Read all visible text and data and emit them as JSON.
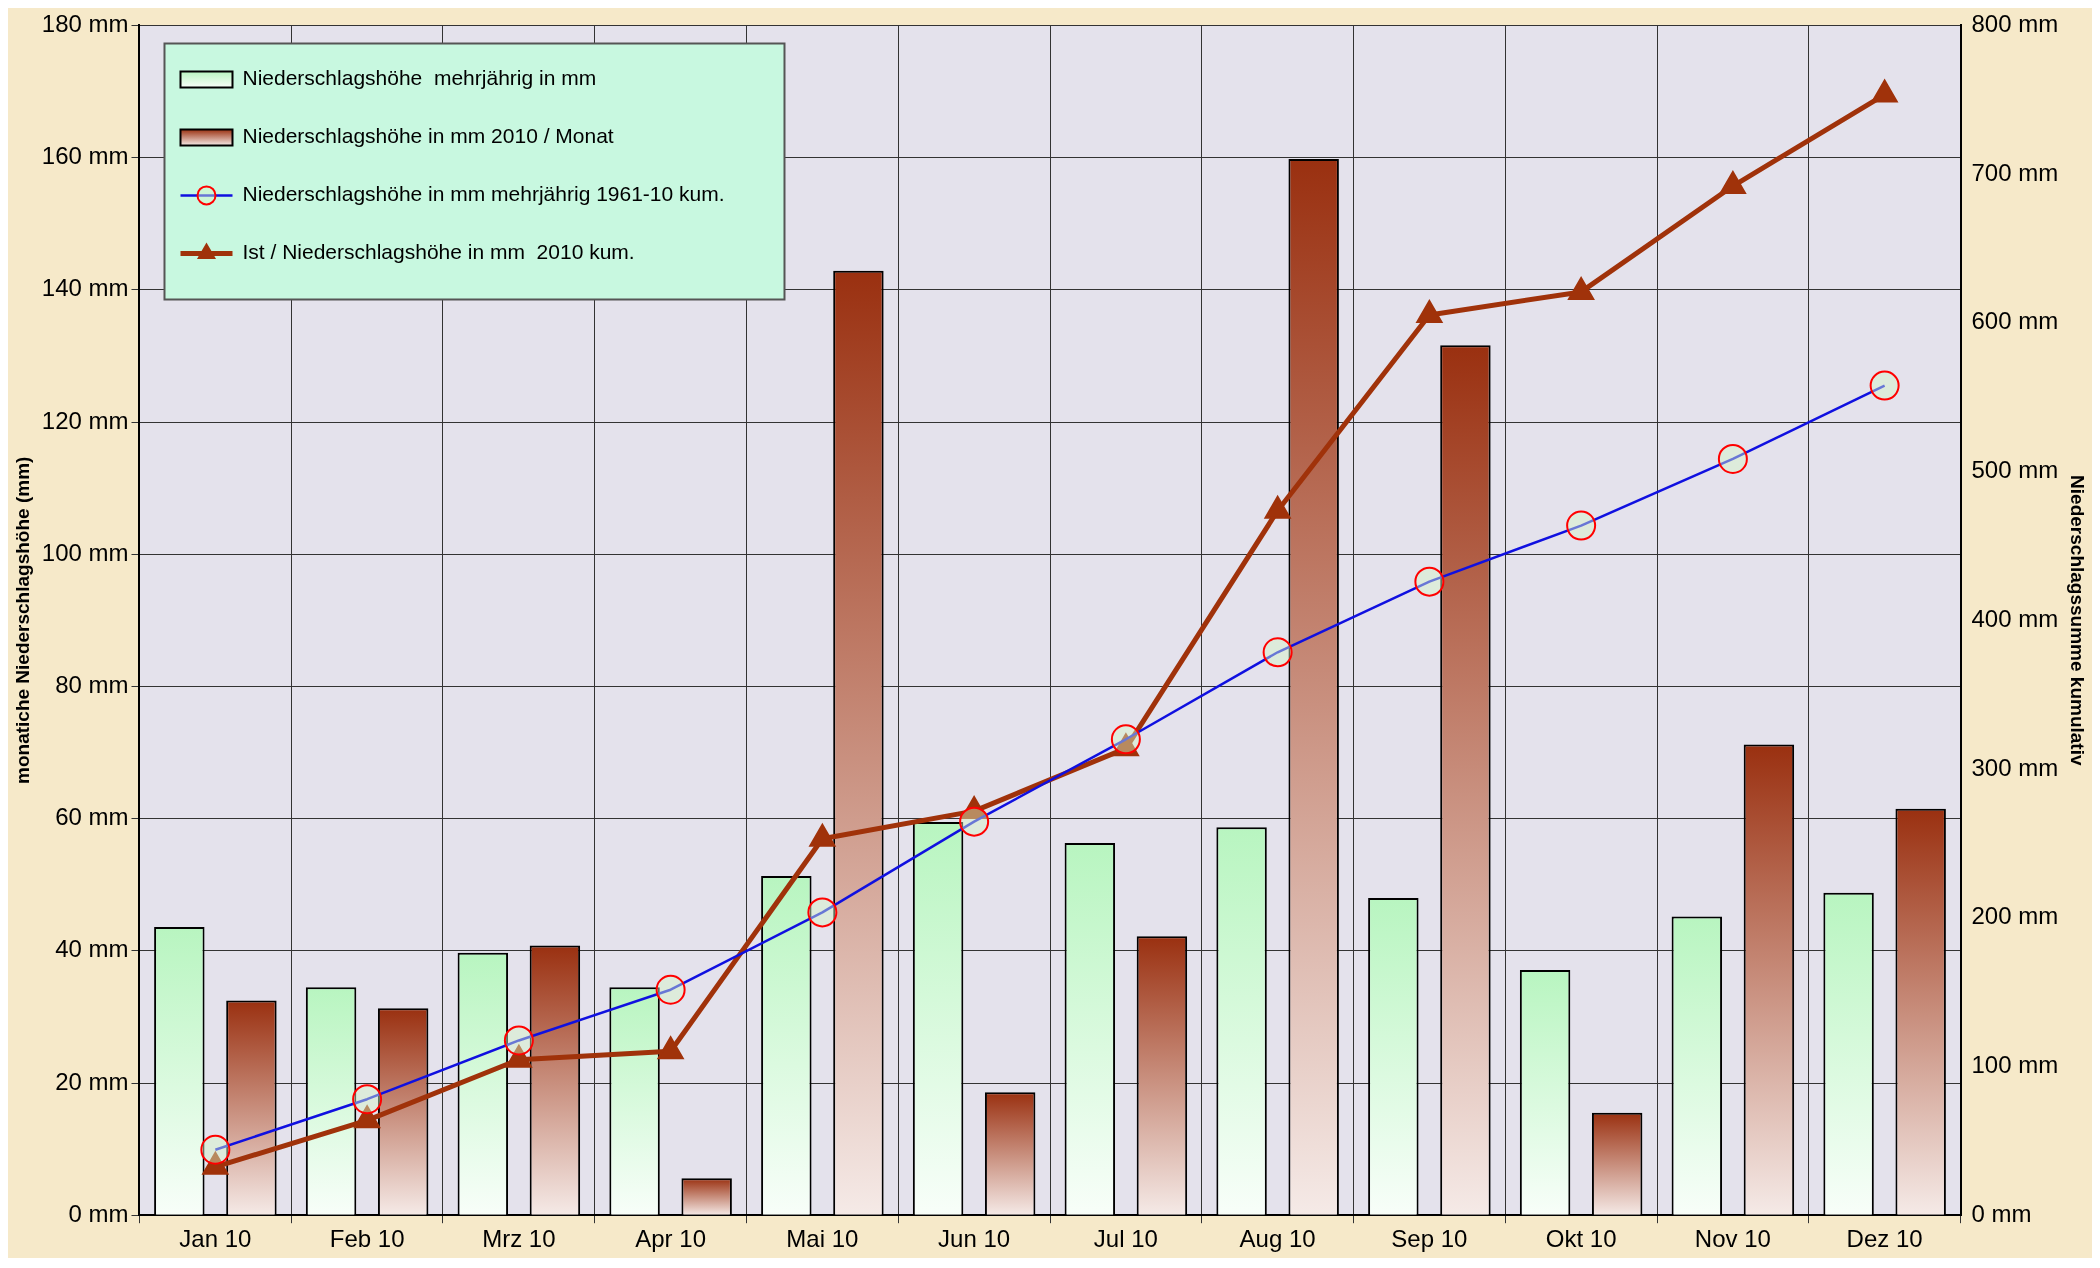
{
  "chart_data": {
    "type": "bar",
    "categories": [
      "Jan 10",
      "Feb 10",
      "Mrz 10",
      "Apr 10",
      "Mai 10",
      "Jun 10",
      "Jul 10",
      "Aug 10",
      "Sep 10",
      "Okt 10",
      "Nov 10",
      "Dez 10"
    ],
    "ylabel": "monatiche Niederschlagshöhe (mm)",
    "y2label": "Niederschlagssumme kumulativ",
    "ylim": [
      0,
      180
    ],
    "yticks": [
      {
        "value": 0,
        "label": "0 mm"
      },
      {
        "value": 20,
        "label": "20 mm"
      },
      {
        "value": 40,
        "label": "40 mm"
      },
      {
        "value": 60,
        "label": "60 mm"
      },
      {
        "value": 80,
        "label": "80 mm"
      },
      {
        "value": 100,
        "label": "100 mm"
      },
      {
        "value": 120,
        "label": "120 mm"
      },
      {
        "value": 140,
        "label": "140 mm"
      },
      {
        "value": 160,
        "label": "160 mm"
      },
      {
        "value": 180,
        "label": "180 mm"
      }
    ],
    "y2lim": [
      0,
      800
    ],
    "y2ticks": [
      {
        "value": 0,
        "label": "0 mm"
      },
      {
        "value": 100,
        "label": "100 mm"
      },
      {
        "value": 200,
        "label": "200 mm"
      },
      {
        "value": 300,
        "label": "300 mm"
      },
      {
        "value": 400,
        "label": "400 mm"
      },
      {
        "value": 500,
        "label": "500 mm"
      },
      {
        "value": 600,
        "label": "600 mm"
      },
      {
        "value": 700,
        "label": "700 mm"
      },
      {
        "value": 800,
        "label": "800 mm"
      }
    ],
    "grid": true,
    "legend": "top left",
    "series": [
      {
        "name": "Niederschlagshöhe  mehrjährig in mm",
        "color": "#b8f5c0",
        "values": [
          43.6,
          34.5,
          39.7,
          34.5,
          51.3,
          59.5,
          56.3,
          58.7,
          48,
          37.1,
          45.2,
          48.8
        ]
      },
      {
        "name": "Niederschlagshöhe in mm 2010 / Monat",
        "color": "#9a3010",
        "values": [
          32.5,
          31.3,
          40.8,
          5.6,
          142.9,
          18.6,
          42.2,
          159.8,
          131.6,
          15.5,
          71.2,
          61.5
        ]
      },
      {
        "name": "Niederschlagshöhe in mm mehrjährig 1961-10 kum.",
        "type": "line",
        "axis": "y2",
        "color": "#1010e0",
        "marker": "circle",
        "values": [
          44,
          78,
          117.5,
          151.6,
          203.6,
          264.6,
          320,
          378.5,
          426,
          463.7,
          508.5,
          557.8
        ]
      },
      {
        "name": "Ist / Niederschlagshöhe in mm  2010 kum.",
        "type": "line",
        "axis": "y2",
        "color": "#a0320a",
        "marker": "triangle",
        "values": [
          32.5,
          63.8,
          104.6,
          110.2,
          253.1,
          271.7,
          313.9,
          473.7,
          605.3,
          620.8,
          692,
          753.5
        ]
      }
    ]
  }
}
